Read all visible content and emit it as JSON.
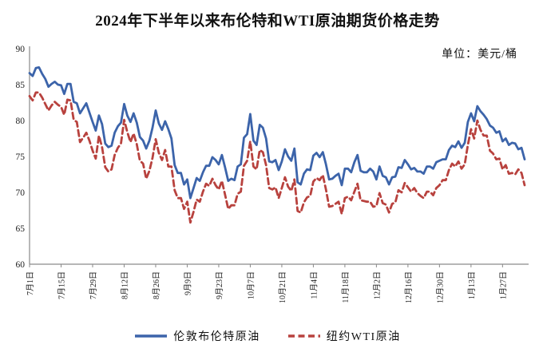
{
  "chart_data": {
    "type": "line",
    "title": "2024年下半年以来布伦特和WTI原油期货价格走势",
    "unit_label": "单位：美元/桶",
    "xlabel": "",
    "ylabel": "",
    "ylim": [
      60,
      90
    ],
    "y_ticks": [
      60,
      65,
      70,
      75,
      80,
      85,
      90
    ],
    "grid": false,
    "legend_position": "bottom",
    "x_tick_every": 10,
    "x_tick_labels": [
      "7月1日",
      "7月15日",
      "7月29日",
      "8月12日",
      "8月26日",
      "9月9日",
      "9月23日",
      "10月7日",
      "10月21日",
      "11月4日",
      "11月18日",
      "12月2日",
      "12月16日",
      "12月30日",
      "1月13日",
      "1月27日"
    ],
    "series": [
      {
        "name": "伦敦布伦特原油",
        "style": "solid",
        "color": "#3c64aa",
        "values": [
          86.6,
          86.2,
          87.3,
          87.4,
          86.5,
          85.8,
          84.7,
          85.1,
          85.4,
          85.0,
          84.9,
          83.7,
          85.1,
          85.1,
          82.6,
          82.4,
          81.0,
          81.7,
          82.4,
          81.1,
          79.8,
          78.6,
          80.7,
          79.5,
          76.8,
          76.3,
          76.5,
          78.3,
          79.2,
          79.7,
          82.3,
          80.7,
          79.8,
          81.0,
          79.7,
          77.7,
          77.2,
          76.1,
          77.2,
          79.0,
          81.4,
          79.6,
          78.7,
          79.9,
          78.8,
          77.5,
          73.8,
          72.7,
          72.7,
          71.1,
          71.8,
          69.2,
          70.6,
          72.0,
          71.6,
          72.8,
          73.7,
          73.7,
          74.9,
          74.5,
          73.9,
          75.2,
          73.5,
          71.6,
          71.9,
          71.7,
          73.6,
          73.9,
          77.6,
          78.1,
          80.9,
          77.2,
          76.6,
          79.4,
          79.0,
          77.5,
          74.3,
          74.2,
          74.5,
          73.1,
          74.3,
          76.0,
          75.0,
          74.4,
          76.1,
          71.4,
          71.1,
          72.6,
          73.2,
          73.1,
          75.1,
          75.5,
          74.9,
          75.6,
          73.9,
          71.8,
          71.9,
          72.3,
          72.6,
          71.0,
          73.3,
          73.3,
          72.8,
          74.2,
          75.2,
          73.0,
          72.8,
          72.8,
          73.3,
          72.9,
          71.8,
          73.6,
          72.3,
          72.1,
          71.1,
          72.1,
          72.2,
          73.5,
          73.4,
          74.5,
          73.9,
          73.2,
          73.4,
          72.9,
          72.9,
          72.6,
          73.6,
          73.6,
          73.3,
          74.2,
          74.4,
          74.6,
          74.6,
          75.9,
          76.5,
          76.3,
          77.1,
          76.2,
          76.9,
          79.8,
          81.0,
          79.9,
          82.0,
          81.3,
          80.8,
          80.2,
          79.3,
          79.0,
          78.3,
          78.5,
          77.1,
          77.5,
          76.6,
          76.9,
          76.8,
          76.0,
          76.2,
          74.6
        ]
      },
      {
        "name": "纽约WTI原油",
        "style": "dashed",
        "color": "#b8423e",
        "values": [
          83.4,
          82.8,
          83.9,
          83.9,
          83.2,
          82.3,
          81.4,
          82.1,
          82.6,
          82.2,
          81.9,
          80.8,
          82.9,
          82.8,
          80.1,
          79.8,
          77.0,
          77.6,
          78.3,
          77.2,
          75.8,
          74.7,
          77.9,
          76.3,
          73.5,
          72.9,
          73.2,
          75.2,
          76.2,
          76.8,
          80.1,
          78.4,
          77.0,
          78.2,
          76.7,
          74.4,
          74.0,
          71.9,
          73.0,
          74.8,
          77.4,
          75.5,
          74.5,
          75.9,
          73.6,
          73.6,
          70.3,
          69.2,
          69.2,
          67.7,
          68.7,
          65.8,
          67.3,
          69.0,
          68.7,
          70.1,
          71.2,
          70.9,
          71.9,
          71.0,
          70.4,
          71.6,
          69.7,
          67.7,
          68.2,
          68.2,
          69.8,
          70.1,
          73.7,
          74.4,
          77.1,
          73.6,
          73.2,
          75.9,
          75.6,
          73.8,
          70.6,
          70.4,
          70.7,
          69.2,
          70.6,
          72.1,
          70.8,
          70.2,
          71.8,
          67.4,
          67.2,
          68.6,
          69.3,
          69.5,
          71.5,
          72.0,
          71.7,
          72.4,
          70.4,
          68.0,
          68.1,
          68.4,
          68.7,
          67.0,
          69.2,
          69.4,
          68.9,
          70.1,
          71.2,
          68.9,
          68.8,
          68.7,
          68.7,
          68.0,
          68.1,
          69.9,
          68.5,
          68.3,
          67.2,
          68.4,
          68.6,
          70.3,
          70.0,
          71.3,
          70.7,
          70.1,
          70.6,
          69.9,
          69.5,
          69.2,
          70.1,
          70.1,
          69.6,
          70.6,
          71.0,
          71.7,
          71.7,
          73.1,
          74.0,
          73.6,
          74.3,
          73.3,
          73.9,
          76.6,
          78.8,
          77.5,
          80.0,
          78.7,
          77.9,
          77.9,
          75.8,
          75.4,
          74.6,
          74.7,
          73.2,
          73.8,
          72.6,
          72.7,
          72.5,
          73.2,
          72.7,
          71.0
        ]
      }
    ]
  }
}
